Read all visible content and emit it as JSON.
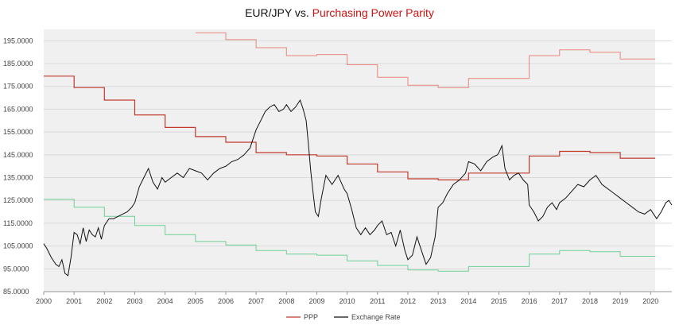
{
  "chart_data": {
    "type": "line",
    "title_part1": "EUR/JPY vs. ",
    "title_part2": "Purchasing Power Parity",
    "title_colors": {
      "part1": "#111111",
      "part2": "#cc1111"
    },
    "xlim": [
      2000,
      2020.7
    ],
    "ylim": [
      85,
      200
    ],
    "y_ticks": [
      "85.0000",
      "95.0000",
      "105.0000",
      "115.0000",
      "125.0000",
      "135.0000",
      "145.0000",
      "155.0000",
      "165.0000",
      "175.0000",
      "185.0000",
      "195.0000"
    ],
    "x_ticks": [
      "2000",
      "2001",
      "2002",
      "2003",
      "2004",
      "2005",
      "2006",
      "2007",
      "2008",
      "2009",
      "2010",
      "2011",
      "2012",
      "2013",
      "2014",
      "2015",
      "2016",
      "2017",
      "2018",
      "2019",
      "2020"
    ],
    "grid": "horizontal",
    "band_color": "#f0f0f0",
    "legend_position": "bottom",
    "legend": [
      {
        "label": "PPP",
        "color": "#c0392b"
      },
      {
        "label": "Exchange Rate",
        "color": "#111111"
      }
    ],
    "ppp_steps": [
      {
        "x": 2000,
        "mid": 179.5,
        "upper": null,
        "lower": 125.5
      },
      {
        "x": 2001,
        "mid": 174.5,
        "upper": null,
        "lower": 122.0
      },
      {
        "x": 2002,
        "mid": 169.0,
        "upper": null,
        "lower": 118.0
      },
      {
        "x": 2003,
        "mid": 162.5,
        "upper": null,
        "lower": 114.0
      },
      {
        "x": 2004,
        "mid": 157.0,
        "upper": null,
        "lower": 110.0
      },
      {
        "x": 2005,
        "mid": 153.0,
        "upper": 198.5,
        "lower": 107.0
      },
      {
        "x": 2006,
        "mid": 150.5,
        "upper": 195.5,
        "lower": 105.5
      },
      {
        "x": 2007,
        "mid": 146.0,
        "upper": 192.0,
        "lower": 103.0
      },
      {
        "x": 2008,
        "mid": 145.0,
        "upper": 188.5,
        "lower": 101.5
      },
      {
        "x": 2009,
        "mid": 144.5,
        "upper": 189.0,
        "lower": 101.0
      },
      {
        "x": 2010,
        "mid": 141.0,
        "upper": 184.5,
        "lower": 98.5
      },
      {
        "x": 2011,
        "mid": 137.5,
        "upper": 179.0,
        "lower": 96.5
      },
      {
        "x": 2012,
        "mid": 134.5,
        "upper": 175.5,
        "lower": 94.5
      },
      {
        "x": 2013,
        "mid": 134.0,
        "upper": 174.5,
        "lower": 94.0
      },
      {
        "x": 2014,
        "mid": 137.0,
        "upper": 178.5,
        "lower": 96.0
      },
      {
        "x": 2015,
        "mid": 137.0,
        "upper": 178.5,
        "lower": 96.0
      },
      {
        "x": 2016,
        "mid": 144.5,
        "upper": 188.5,
        "lower": 101.5
      },
      {
        "x": 2017,
        "mid": 146.5,
        "upper": 191.0,
        "lower": 103.0
      },
      {
        "x": 2018,
        "mid": 146.0,
        "upper": 190.0,
        "lower": 102.5
      },
      {
        "x": 2019,
        "mid": 143.5,
        "upper": 187.0,
        "lower": 100.5
      }
    ],
    "ppp_end_x": 2020.15,
    "exchange_rate": {
      "x": [
        2000.0,
        2000.1,
        2000.25,
        2000.4,
        2000.5,
        2000.6,
        2000.7,
        2000.8,
        2000.9,
        2001.0,
        2001.1,
        2001.2,
        2001.3,
        2001.4,
        2001.5,
        2001.6,
        2001.7,
        2001.8,
        2001.9,
        2002.0,
        2002.15,
        2002.3,
        2002.45,
        2002.6,
        2002.75,
        2002.9,
        2003.0,
        2003.15,
        2003.3,
        2003.45,
        2003.6,
        2003.75,
        2003.9,
        2004.0,
        2004.2,
        2004.4,
        2004.6,
        2004.8,
        2005.0,
        2005.2,
        2005.4,
        2005.6,
        2005.8,
        2006.0,
        2006.2,
        2006.4,
        2006.6,
        2006.8,
        2007.0,
        2007.15,
        2007.3,
        2007.45,
        2007.6,
        2007.75,
        2007.9,
        2008.0,
        2008.15,
        2008.3,
        2008.45,
        2008.55,
        2008.65,
        2008.72,
        2008.8,
        2008.88,
        2008.95,
        2009.05,
        2009.15,
        2009.3,
        2009.5,
        2009.7,
        2009.9,
        2010.0,
        2010.15,
        2010.3,
        2010.45,
        2010.6,
        2010.75,
        2010.9,
        2011.0,
        2011.15,
        2011.3,
        2011.45,
        2011.6,
        2011.75,
        2011.9,
        2012.0,
        2012.15,
        2012.3,
        2012.45,
        2012.6,
        2012.75,
        2012.9,
        2013.0,
        2013.15,
        2013.3,
        2013.5,
        2013.7,
        2013.9,
        2014.0,
        2014.2,
        2014.4,
        2014.6,
        2014.8,
        2014.95,
        2015.0,
        2015.1,
        2015.2,
        2015.35,
        2015.5,
        2015.65,
        2015.8,
        2015.95,
        2016.0,
        2016.15,
        2016.3,
        2016.45,
        2016.6,
        2016.75,
        2016.9,
        2017.0,
        2017.2,
        2017.4,
        2017.6,
        2017.8,
        2018.0,
        2018.2,
        2018.4,
        2018.6,
        2018.8,
        2019.0,
        2019.2,
        2019.4,
        2019.6,
        2019.8,
        2020.0,
        2020.2,
        2020.35,
        2020.5,
        2020.6,
        2020.7
      ],
      "y": [
        106,
        104,
        100,
        97,
        96,
        99,
        93,
        92,
        100,
        111,
        110,
        106,
        113,
        107,
        112,
        110,
        109,
        113,
        108,
        114,
        117,
        117,
        118,
        119,
        120,
        122,
        124,
        131,
        135,
        139,
        133,
        130,
        135,
        133,
        135,
        137,
        135,
        139,
        138,
        137,
        134,
        137,
        139,
        140,
        142,
        143,
        145,
        148,
        156,
        160,
        164,
        166,
        167,
        164,
        165,
        167,
        164,
        166,
        169,
        165,
        160,
        150,
        138,
        128,
        120,
        118,
        126,
        136,
        132,
        136,
        130,
        128,
        121,
        113,
        110,
        113,
        110,
        112,
        114,
        116,
        110,
        111,
        105,
        112,
        103,
        99,
        101,
        109,
        103,
        97,
        100,
        109,
        122,
        124,
        128,
        132,
        134,
        137,
        142,
        141,
        138,
        142,
        144,
        145,
        146,
        149,
        139,
        134,
        136,
        137,
        134,
        132,
        123,
        120,
        116,
        118,
        122,
        124,
        121,
        124,
        126,
        129,
        132,
        131,
        134,
        136,
        132,
        130,
        128,
        126,
        124,
        122,
        120,
        119,
        121,
        117,
        120,
        124,
        125,
        123
      ]
    }
  }
}
